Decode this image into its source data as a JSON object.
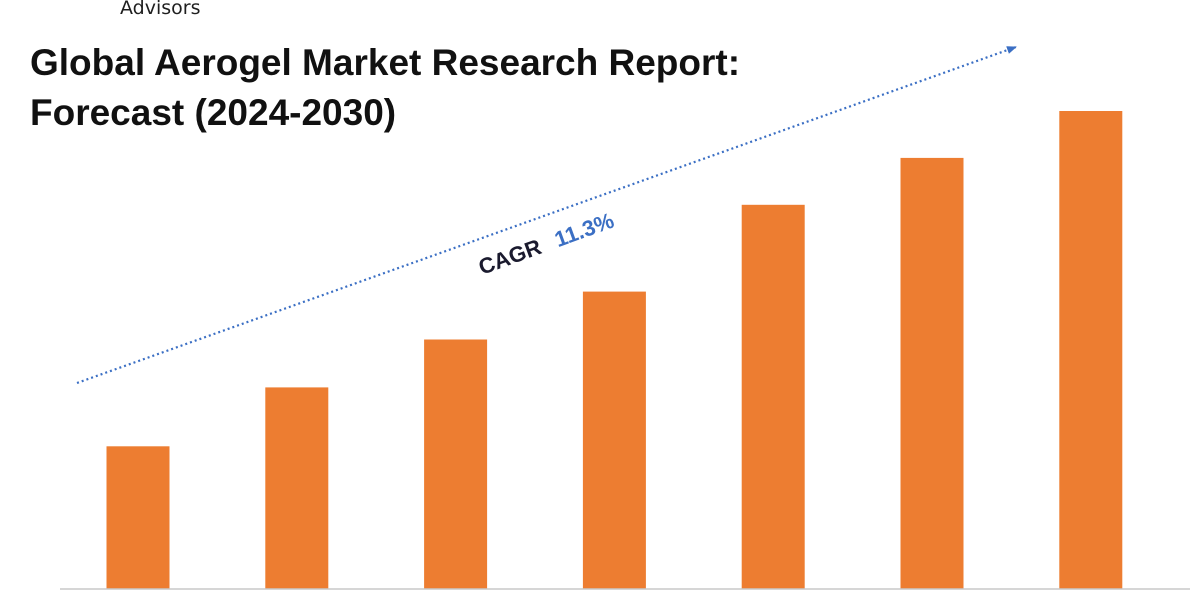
{
  "brand": {
    "name": "Advisors"
  },
  "header": {
    "title_line1": "Global Aerogel Market Research Report:",
    "title_line2": "Forecast (2024-2030)"
  },
  "annotation": {
    "cagr_label": "CAGR",
    "cagr_value": "11.3%",
    "label_color": "#1a1a2e",
    "value_color": "#3b6fc4",
    "trend_color": "#3b6fc4"
  },
  "chart_data": {
    "type": "bar",
    "categories": [
      "",
      "",
      "",
      "",
      "",
      "",
      ""
    ],
    "values": [
      143,
      202,
      250,
      298,
      385,
      432,
      479
    ],
    "ylim": [
      0,
      500
    ],
    "grid": false,
    "bar_color": "#ed7d31",
    "axis_color": "#c8c8c8"
  }
}
